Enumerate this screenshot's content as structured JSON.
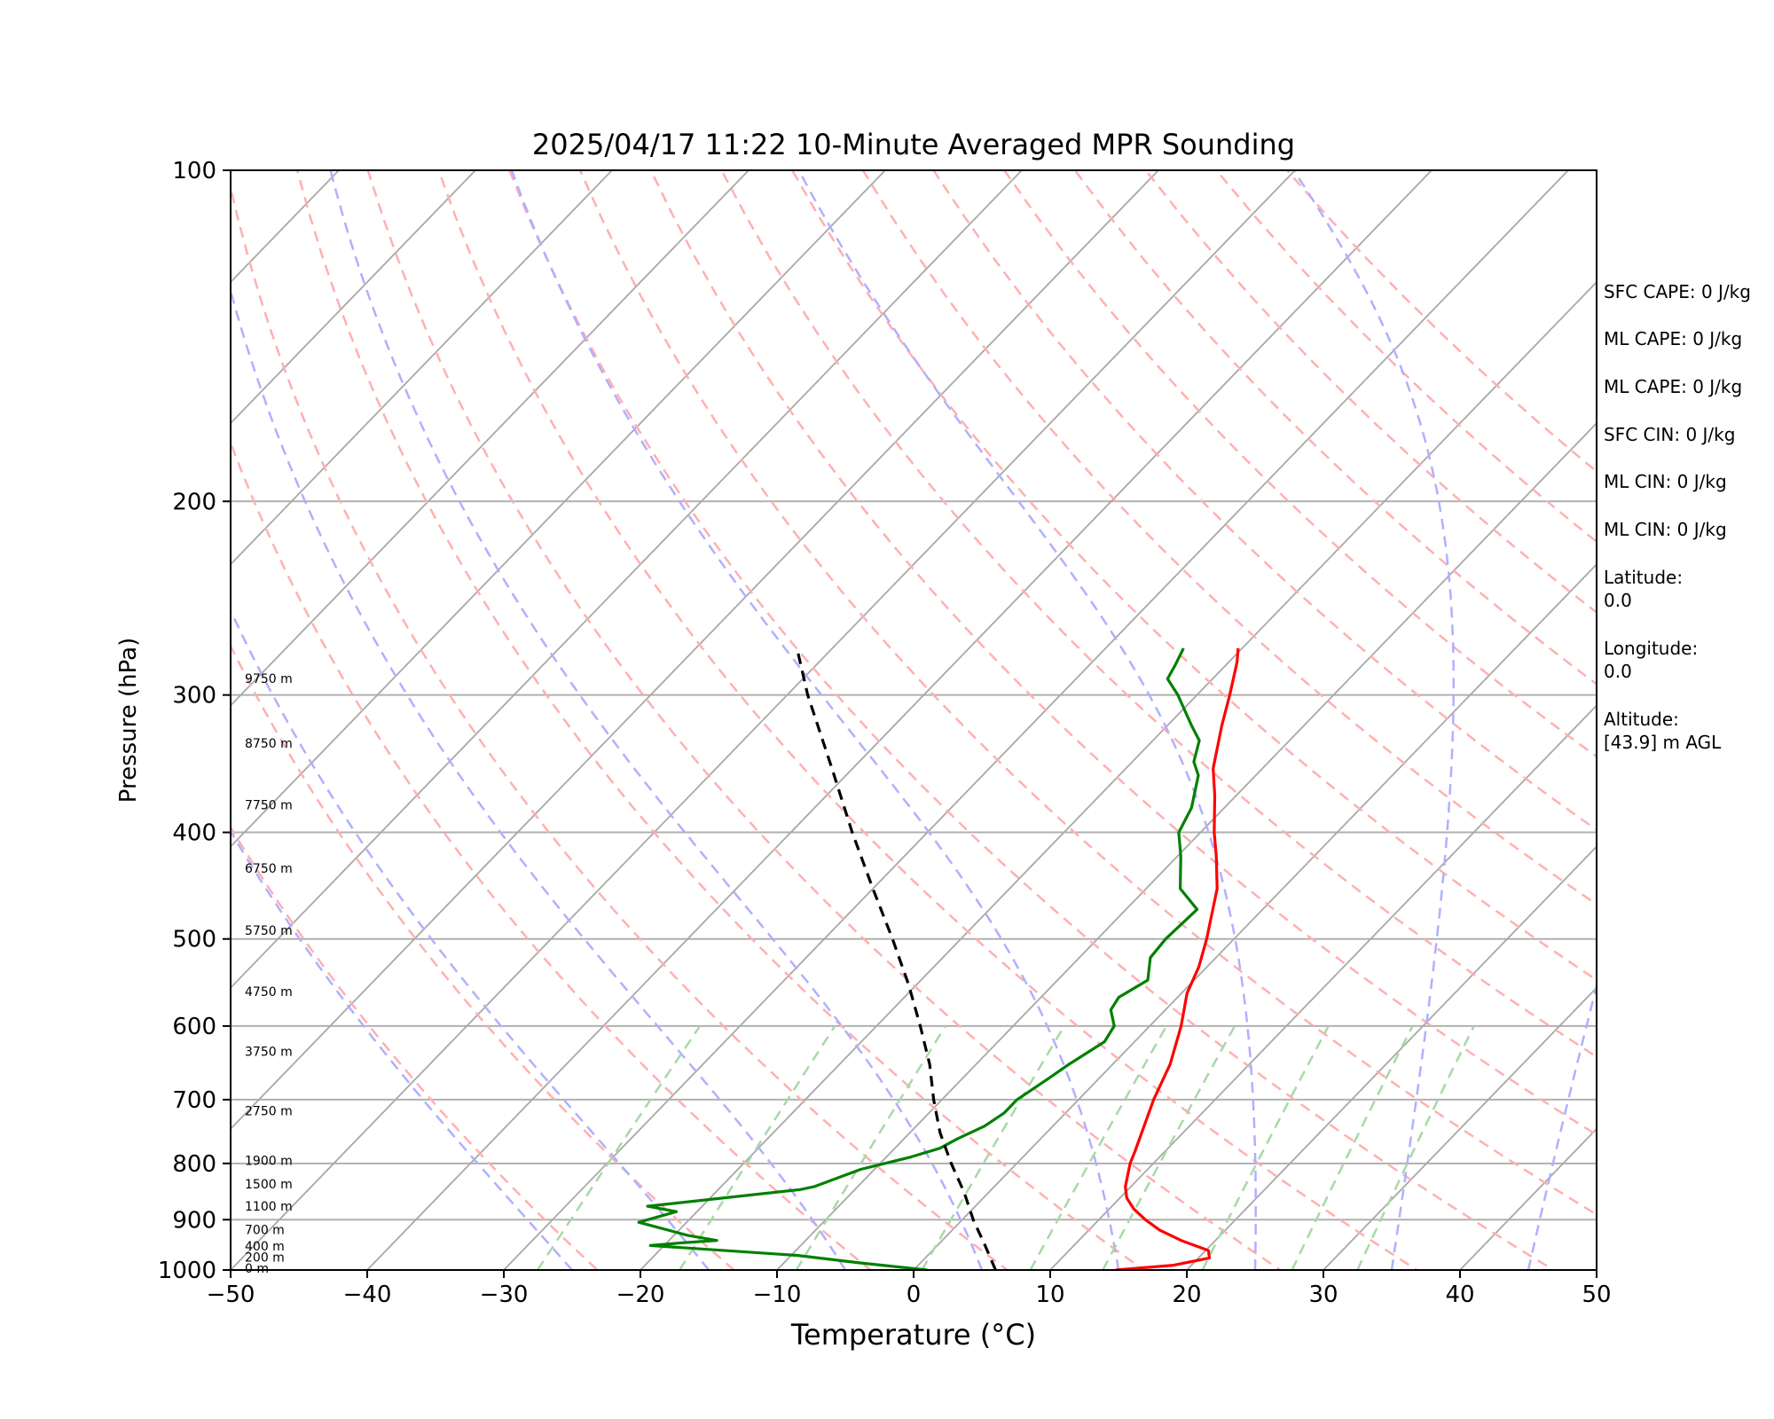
{
  "chart_data": {
    "type": "skew-t log-p sounding",
    "title": "2025/04/17 11:22 10-Minute Averaged MPR Sounding",
    "xlabel": "Temperature (°C)",
    "ylabel": "Pressure (hPa)",
    "xlim": [
      -50,
      50
    ],
    "ylim": [
      1000,
      100
    ],
    "y_scale": "log",
    "x_ticks": [
      "−50",
      "−40",
      "−30",
      "−20",
      "−10",
      "0",
      "10",
      "20",
      "30",
      "40",
      "50"
    ],
    "x_tick_values": [
      -50,
      -40,
      -30,
      -20,
      -10,
      0,
      10,
      20,
      30,
      40,
      50
    ],
    "y_ticks": [
      "100",
      "200",
      "300",
      "400",
      "500",
      "600",
      "700",
      "800",
      "900",
      "1000"
    ],
    "y_tick_values": [
      100,
      200,
      300,
      400,
      500,
      600,
      700,
      800,
      900,
      1000
    ],
    "height_labels": [
      {
        "text": "0 m",
        "p": 1000
      },
      {
        "text": "200 m",
        "p": 977
      },
      {
        "text": "400 m",
        "p": 955
      },
      {
        "text": "700 m",
        "p": 922
      },
      {
        "text": "1100 m",
        "p": 878
      },
      {
        "text": "1500 m",
        "p": 838
      },
      {
        "text": "1900 m",
        "p": 798
      },
      {
        "text": "2750 m",
        "p": 719
      },
      {
        "text": "3750 m",
        "p": 635
      },
      {
        "text": "4750 m",
        "p": 560
      },
      {
        "text": "5750 m",
        "p": 493
      },
      {
        "text": "6750 m",
        "p": 433
      },
      {
        "text": "7750 m",
        "p": 379
      },
      {
        "text": "8750 m",
        "p": 333
      },
      {
        "text": "9750 m",
        "p": 291
      }
    ],
    "series": [
      {
        "key": "temperature",
        "color": "#ff0000",
        "points": [
          [
            1000,
            14.8
          ],
          [
            990,
            18.7
          ],
          [
            975,
            20.8
          ],
          [
            960,
            20.2
          ],
          [
            940,
            17.5
          ],
          [
            920,
            15.2
          ],
          [
            900,
            13.4
          ],
          [
            880,
            11.8
          ],
          [
            860,
            10.5
          ],
          [
            840,
            9.6
          ],
          [
            800,
            8.3
          ],
          [
            780,
            7.8
          ],
          [
            700,
            5.5
          ],
          [
            650,
            4.2
          ],
          [
            600,
            2.3
          ],
          [
            560,
            0.4
          ],
          [
            530,
            -0.6
          ],
          [
            500,
            -2.0
          ],
          [
            450,
            -4.8
          ],
          [
            420,
            -7.2
          ],
          [
            400,
            -9.0
          ],
          [
            370,
            -11.6
          ],
          [
            350,
            -13.6
          ],
          [
            320,
            -16.0
          ],
          [
            300,
            -17.6
          ],
          [
            280,
            -19.4
          ],
          [
            272,
            -20.3
          ]
        ]
      },
      {
        "key": "dewpoint",
        "color": "#008000",
        "points": [
          [
            1000,
            1.0
          ],
          [
            985,
            -4.5
          ],
          [
            970,
            -9.5
          ],
          [
            950,
            -21.0
          ],
          [
            945,
            -19.0
          ],
          [
            940,
            -16.5
          ],
          [
            930,
            -19.0
          ],
          [
            905,
            -23.5
          ],
          [
            885,
            -21.5
          ],
          [
            875,
            -24.0
          ],
          [
            845,
            -14.0
          ],
          [
            840,
            -13.2
          ],
          [
            810,
            -11.0
          ],
          [
            790,
            -8.3
          ],
          [
            775,
            -6.7
          ],
          [
            760,
            -6.1
          ],
          [
            740,
            -5.0
          ],
          [
            720,
            -4.5
          ],
          [
            700,
            -4.5
          ],
          [
            670,
            -3.7
          ],
          [
            650,
            -3.2
          ],
          [
            620,
            -2.2
          ],
          [
            600,
            -2.6
          ],
          [
            580,
            -4.0
          ],
          [
            565,
            -4.3
          ],
          [
            545,
            -3.4
          ],
          [
            520,
            -4.8
          ],
          [
            500,
            -5.0
          ],
          [
            470,
            -4.8
          ],
          [
            450,
            -7.5
          ],
          [
            420,
            -9.8
          ],
          [
            400,
            -11.6
          ],
          [
            380,
            -12.4
          ],
          [
            355,
            -14.2
          ],
          [
            345,
            -15.5
          ],
          [
            330,
            -16.6
          ],
          [
            320,
            -18.2
          ],
          [
            300,
            -21.4
          ],
          [
            290,
            -23.3
          ],
          [
            282,
            -23.7
          ],
          [
            272,
            -24.3
          ]
        ]
      },
      {
        "key": "parcel",
        "color": "#000000",
        "dashed": true,
        "points": [
          [
            1000,
            6.0
          ],
          [
            950,
            3.5
          ],
          [
            900,
            0.8
          ],
          [
            850,
            -1.8
          ],
          [
            800,
            -4.8
          ],
          [
            750,
            -7.8
          ],
          [
            700,
            -10.6
          ],
          [
            650,
            -13.4
          ],
          [
            600,
            -16.8
          ],
          [
            550,
            -20.6
          ],
          [
            500,
            -25.0
          ],
          [
            450,
            -30.0
          ],
          [
            400,
            -35.5
          ],
          [
            350,
            -41.5
          ],
          [
            300,
            -48.5
          ],
          [
            272,
            -52.6
          ]
        ]
      }
    ],
    "reference_lines": {
      "dry_adiabats_theta_k": [
        250,
        260,
        270,
        280,
        290,
        300,
        310,
        320,
        330,
        340,
        350,
        360,
        370,
        380,
        390,
        400,
        410,
        420,
        430
      ],
      "moist_adiabats_start_t": [
        -25,
        -15,
        -5,
        5,
        15,
        25,
        35,
        45,
        55
      ],
      "mixing_ratio_g_per_kg": [
        0.4,
        1,
        2,
        4,
        7,
        10,
        16,
        24,
        32
      ],
      "skewed_isotherms_t": [
        -150,
        -140,
        -130,
        -120,
        -110,
        -100,
        -90,
        -80,
        -70,
        -60,
        -50,
        -40,
        -30,
        -20,
        -10,
        0,
        10,
        20,
        30,
        40,
        50
      ]
    }
  },
  "side_panel": {
    "sfc_cape": "SFC CAPE: 0 J/kg",
    "ml_cape_1": "ML CAPE: 0 J/kg",
    "ml_cape_2": "ML CAPE: 0 J/kg",
    "sfc_cin": "SFC CIN: 0 J/kg",
    "ml_cin_1": "ML CIN: 0 J/kg",
    "ml_cin_2": "ML CIN: 0 J/kg",
    "latitude_label": "Latitude:",
    "latitude_value": "0.0",
    "longitude_label": "Longitude:",
    "longitude_value": "0.0",
    "altitude_label": "Altitude:",
    "altitude_value": "[43.9] m AGL"
  },
  "colors": {
    "grid": "#b0b0b0",
    "isotherm": "#a8a8a8",
    "dry_adiabat": "#ffb0b0",
    "moist_adiabat": "#b0b0ff",
    "mixing_ratio": "#a8d8a8"
  }
}
